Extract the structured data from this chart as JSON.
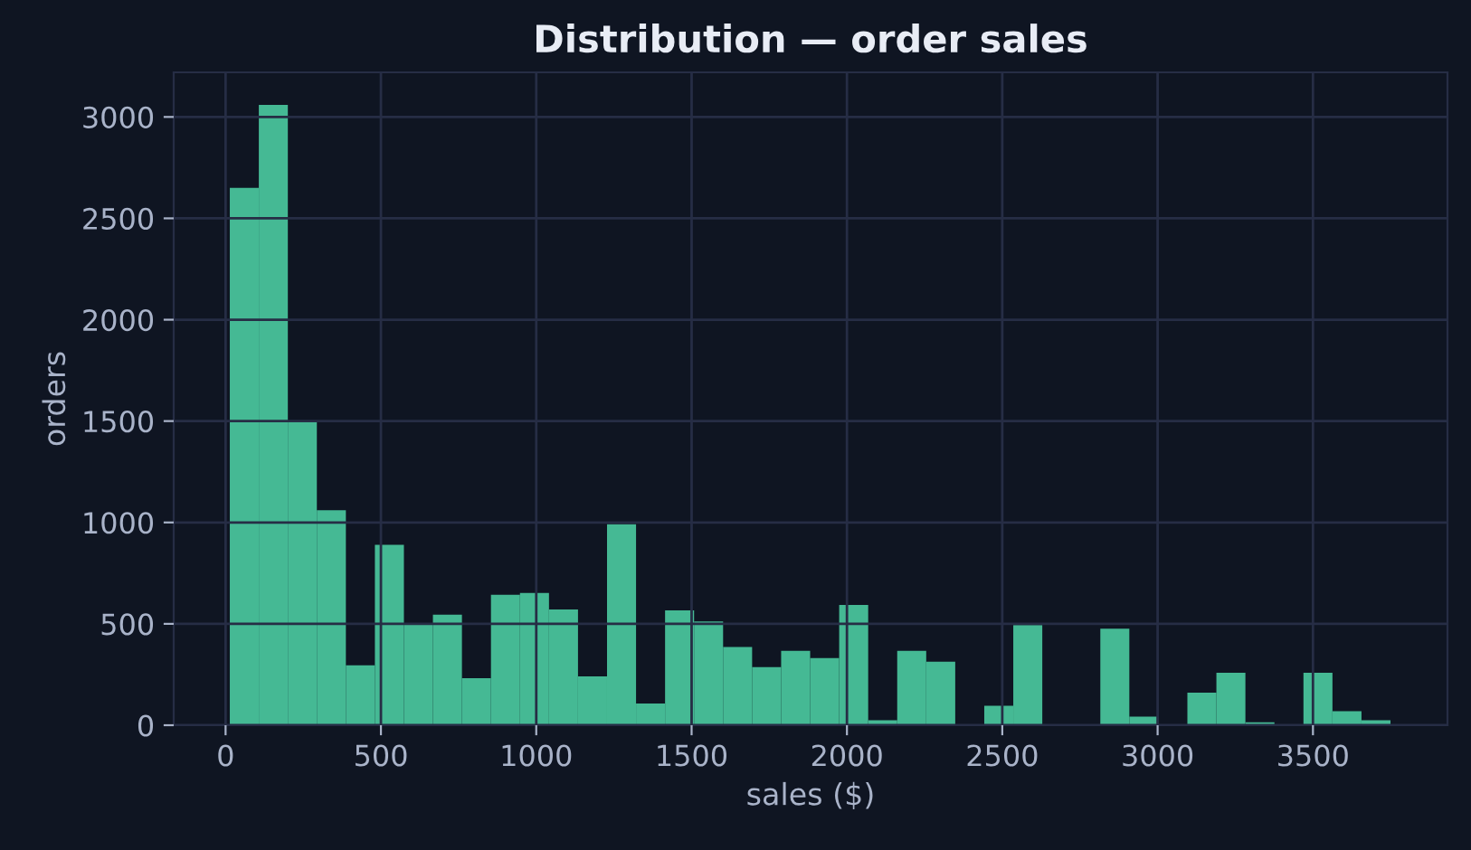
{
  "chart_data": {
    "type": "histogram",
    "title": "Distribution — order sales",
    "xlabel": "sales ($)",
    "ylabel": "orders",
    "bins": [
      13.6,
      107,
      200.4,
      293.8,
      387.2,
      480.6,
      574,
      667.4,
      760.8,
      854.2,
      947.6,
      1041,
      1134.4,
      1227.8,
      1321.2,
      1414.6,
      1508,
      1601.4,
      1694.8,
      1788.2,
      1881.6,
      1975,
      2068.4,
      2161.8,
      2255.2,
      2348.6,
      2442,
      2535.4,
      2628.8,
      2722.2,
      2815.6,
      2909,
      3002.4,
      3095.8,
      3189.2,
      3282.6,
      3376,
      3469.4,
      3562.8,
      3656.2,
      3749.6
    ],
    "values": [
      2650,
      3060,
      1500,
      1060,
      295,
      890,
      500,
      545,
      232,
      643,
      652,
      571,
      241,
      991,
      107,
      566,
      512,
      386,
      286,
      367,
      331,
      593,
      24,
      367,
      313,
      0,
      96,
      494,
      0,
      0,
      476,
      42,
      0,
      160,
      259,
      15,
      0,
      259,
      69,
      24
    ],
    "color": "#45b994",
    "xlim": [
      -167,
      3933
    ],
    "xticks": [
      0,
      500,
      1000,
      1500,
      2000,
      2500,
      3000,
      3500
    ],
    "ylim": [
      0,
      3220
    ],
    "yticks": [
      0,
      500,
      1000,
      1500,
      2000,
      2500,
      3000
    ],
    "grid": true
  }
}
